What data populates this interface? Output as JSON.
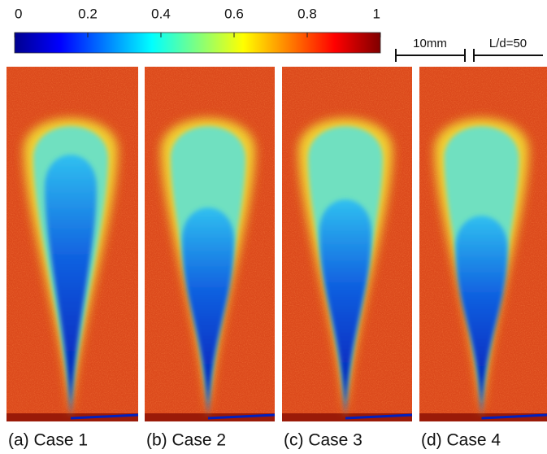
{
  "colorbar": {
    "lim": [
      0,
      1
    ],
    "ticks": [
      0,
      0.2,
      0.4,
      0.6,
      0.8,
      1
    ]
  },
  "scale_bars": [
    "10mm",
    "L/d=50"
  ],
  "panels": [
    "(a) Case 1",
    "(b) Case 2",
    "(c) Case 3",
    "(d) Case 4"
  ]
}
